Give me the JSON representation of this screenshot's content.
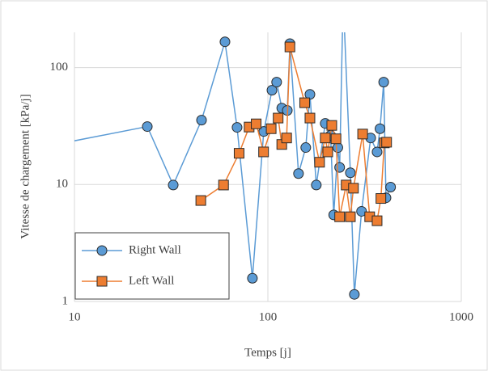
{
  "chart_data": {
    "type": "line",
    "xlabel": "Temps [j]",
    "ylabel": "Vitesse de chargement [kPa/j]",
    "xscale": "log",
    "yscale": "log",
    "xlim": [
      10,
      1000
    ],
    "ylim": [
      1,
      200
    ],
    "xticks": [
      10,
      100,
      1000
    ],
    "yticks": [
      1,
      10,
      100
    ],
    "grid": true,
    "legend": "lower left",
    "series": [
      {
        "name": "Right Wall",
        "color": "#5b9bd5",
        "marker": "circle",
        "x": [
          8,
          23.8,
          32.4,
          45.4,
          60,
          69.3,
          83.2,
          95.2,
          105,
          111,
          118,
          126,
          130,
          144,
          157,
          165,
          178,
          198,
          211,
          219,
          230,
          235,
          245,
          267,
          280,
          305,
          340,
          367,
          380,
          397,
          408,
          431
        ],
        "values": [
          22,
          31.3,
          9.9,
          35.5,
          166,
          30.8,
          1.58,
          28.4,
          64,
          75,
          45,
          43,
          160,
          12.4,
          20.7,
          59,
          9.9,
          33.3,
          26.3,
          5.5,
          20.7,
          14,
          400,
          12.6,
          1.15,
          5.9,
          25,
          19,
          30,
          75,
          7.7,
          9.5
        ]
      },
      {
        "name": "Left Wall",
        "color": "#ed7d31",
        "marker": "square",
        "x": [
          45,
          59,
          71,
          80,
          87,
          95,
          104,
          113,
          118,
          125,
          130,
          155,
          165,
          185,
          198,
          204,
          214,
          225,
          235,
          254,
          267,
          277,
          309,
          336,
          367,
          384,
          400,
          411
        ],
        "values": [
          7.3,
          9.9,
          18.5,
          31,
          33,
          19,
          30,
          37,
          22,
          25,
          150,
          50,
          37,
          15.5,
          25,
          19,
          32,
          24.6,
          5.3,
          9.9,
          5.3,
          9.3,
          27,
          5.3,
          4.9,
          7.6,
          22.7,
          23
        ]
      }
    ]
  }
}
